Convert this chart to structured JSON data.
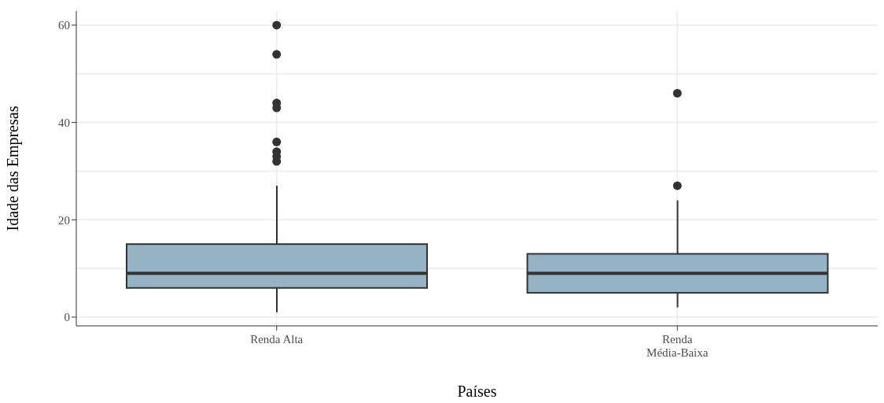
{
  "chart_data": {
    "type": "box",
    "xlabel": "Países",
    "ylabel": "Idade das Empresas",
    "categories": [
      "Renda Alta",
      "Renda\nMédia-Baixa"
    ],
    "color": "#96b3c6",
    "boxes": [
      {
        "low": 1,
        "q1": 6,
        "median": 9,
        "q3": 15,
        "high": 27,
        "outliers": [
          32,
          33,
          34,
          36,
          43,
          44,
          54,
          60
        ]
      },
      {
        "low": 2,
        "q1": 5,
        "median": 9,
        "q3": 13,
        "high": 24,
        "outliers": [
          27,
          46
        ]
      }
    ],
    "ylim": [
      -1.8,
      62.9
    ],
    "yticks": [
      0,
      20,
      40,
      60
    ],
    "grid": true
  }
}
